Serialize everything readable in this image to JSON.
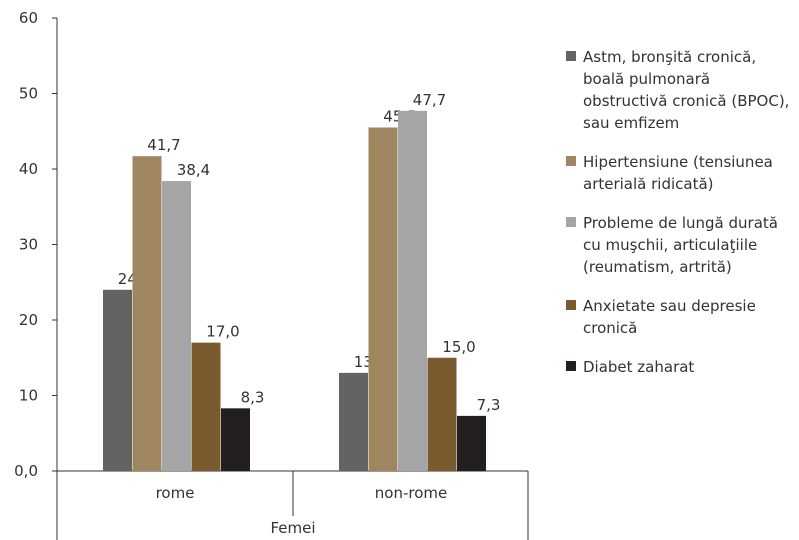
{
  "chart_data": {
    "type": "bar",
    "categories": [
      "rome",
      "non-rome"
    ],
    "group_label": "Femei",
    "ylim": [
      0,
      60
    ],
    "yticks": [
      {
        "value": 0,
        "label": "0,0"
      },
      {
        "value": 10,
        "label": "10"
      },
      {
        "value": 20,
        "label": "20"
      },
      {
        "value": 30,
        "label": "30"
      },
      {
        "value": 40,
        "label": "40"
      },
      {
        "value": 50,
        "label": "50"
      },
      {
        "value": 60,
        "label": "60"
      }
    ],
    "series": [
      {
        "name": "Astm, bronşită cronică, boală pulmonară obstructivă cronică (BPOC), sau emfizem",
        "color": "#636363",
        "values": [
          24.0,
          13.0
        ],
        "labels": [
          "24,0",
          "13,0"
        ]
      },
      {
        "name": "Hipertensiune (tensiunea arterială ridicată)",
        "color": "#a08660",
        "values": [
          41.7,
          45.5
        ],
        "labels": [
          "41,7",
          "45,5"
        ]
      },
      {
        "name": "Probleme de lungă durată cu muşchii, articulaţiile (reumatism, artrită)",
        "color": "#a5a5a8",
        "values": [
          38.4,
          47.7
        ],
        "labels": [
          "38,4",
          "47,7"
        ]
      },
      {
        "name": "Anxietate sau depresie cronică",
        "color": "#7a5a2f",
        "values": [
          17.0,
          15.0
        ],
        "labels": [
          "17,0",
          "15,0"
        ]
      },
      {
        "name": "Diabet zaharat",
        "color": "#231f20",
        "values": [
          8.3,
          7.3
        ],
        "labels": [
          "8,3",
          "7,3"
        ]
      }
    ],
    "legend_position": "right",
    "grid": false
  }
}
